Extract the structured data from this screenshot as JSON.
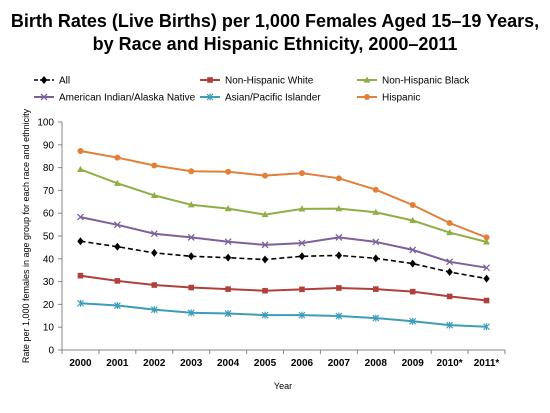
{
  "chart_data": {
    "type": "line",
    "title_line1": "Birth Rates (Live Births) per 1,000 Females Aged 15–19 Years,",
    "title_line2": "by Race and Hispanic Ethnicity, 2000–2011",
    "xlabel": "Year",
    "ylabel": "Rate per 1,000 females in age group for each race and ethnicity",
    "categories": [
      "2000",
      "2001",
      "2002",
      "2003",
      "2004",
      "2005",
      "2006",
      "2007",
      "2008",
      "2009",
      "2010*",
      "2011*"
    ],
    "ylim": [
      0,
      100
    ],
    "yticks": [
      0,
      10,
      20,
      30,
      40,
      50,
      60,
      70,
      80,
      90,
      100
    ],
    "grid": false,
    "legend_position": "top",
    "series": [
      {
        "name": "All",
        "color": "#000000",
        "marker": "diamond",
        "dashed": true,
        "values": [
          47.7,
          45.3,
          42.6,
          41.1,
          40.5,
          39.7,
          41.1,
          41.5,
          40.2,
          37.9,
          34.2,
          31.3
        ]
      },
      {
        "name": "Non-Hispanic White",
        "color": "#b0403c",
        "marker": "square",
        "dashed": false,
        "values": [
          32.6,
          30.3,
          28.5,
          27.4,
          26.7,
          26.0,
          26.6,
          27.2,
          26.7,
          25.6,
          23.5,
          21.7
        ]
      },
      {
        "name": "Non-Hispanic Black",
        "color": "#8fae45",
        "marker": "triangle",
        "dashed": false,
        "values": [
          79.2,
          73.1,
          67.8,
          63.7,
          62.0,
          59.4,
          61.9,
          62.0,
          60.4,
          56.8,
          51.5,
          47.4
        ]
      },
      {
        "name": "American Indian/Alaska Native",
        "color": "#7e6199",
        "marker": "x",
        "dashed": false,
        "values": [
          58.3,
          54.9,
          51.0,
          49.4,
          47.5,
          46.1,
          46.9,
          49.4,
          47.4,
          43.9,
          38.7,
          36.1
        ]
      },
      {
        "name": "Asian/Pacific Islander",
        "color": "#3d9db7",
        "marker": "star",
        "dashed": false,
        "values": [
          20.5,
          19.5,
          17.7,
          16.3,
          16.0,
          15.3,
          15.3,
          14.9,
          14.0,
          12.6,
          10.9,
          10.2
        ]
      },
      {
        "name": "Hispanic",
        "color": "#e0803a",
        "marker": "circle",
        "dashed": false,
        "values": [
          87.3,
          84.4,
          80.9,
          78.4,
          78.2,
          76.5,
          77.6,
          75.3,
          70.3,
          63.6,
          55.7,
          49.4
        ]
      }
    ]
  }
}
